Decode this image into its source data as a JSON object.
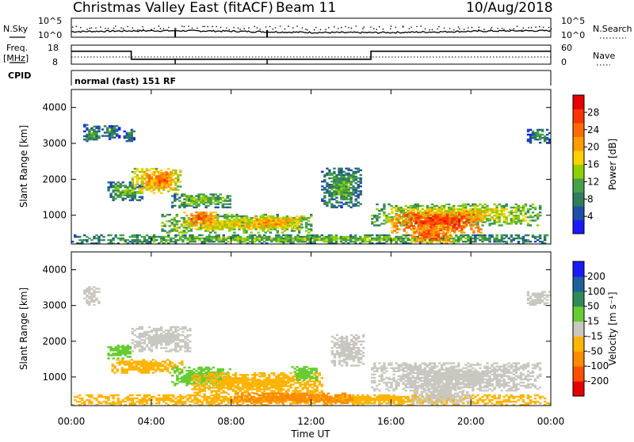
{
  "header": {
    "station": "Christmas Valley East (fitACF)",
    "beam": "Beam 11",
    "date": "10/Aug/2018"
  },
  "panels": {
    "nsky": {
      "label": "N.Sky",
      "left_ticks": [
        "10^5",
        "10^0"
      ],
      "right_ticks": [
        "10^5",
        "10^0"
      ],
      "right_label": "N.Search"
    },
    "freq": {
      "label_line1": "Freq.",
      "label_line2": "[MHz]",
      "left_ticks": [
        "18",
        "8"
      ],
      "right_ticks": [
        "60",
        "0"
      ],
      "right_label": "Nave"
    },
    "cpid": {
      "label": "CPID",
      "mode_text": "normal (fast) 151 RF"
    }
  },
  "axes": {
    "ylabel": "Slant Range [km]",
    "xlabel": "Time UT",
    "y_ticks": [
      "1000",
      "2000",
      "3000",
      "4000"
    ],
    "x_ticks": [
      "00:00",
      "04:00",
      "08:00",
      "12:00",
      "16:00",
      "20:00",
      "00:00"
    ]
  },
  "colorbars": {
    "power": {
      "label": "Power [dB]",
      "ticks": [
        "4",
        "8",
        "12",
        "16",
        "20",
        "24",
        "28"
      ],
      "colors": [
        "#1a1aff",
        "#1f4ea8",
        "#2e7d5b",
        "#48a048",
        "#8cd000",
        "#ffd000",
        "#ff9c00",
        "#ff6a00",
        "#ff3300",
        "#e60000"
      ]
    },
    "velocity": {
      "label": "Velocity [m s⁻¹]",
      "ticks": [
        "-200",
        "-100",
        "-50",
        "-15",
        "15",
        "50",
        "100",
        "200"
      ],
      "colors": [
        "#e60000",
        "#ff5000",
        "#ff8c00",
        "#ffb400",
        "#c8c8c0",
        "#66cc33",
        "#2e8b57",
        "#1f5fa0",
        "#1a1aff"
      ]
    }
  },
  "chart_data": {
    "type": "heatmap",
    "title": "Christmas Valley East (fitACF)",
    "xlabel": "Time UT",
    "ylabel": "Slant Range [km]",
    "xlim_hours": [
      0,
      24
    ],
    "ylim_km": [
      200,
      4500
    ],
    "grid": false,
    "series": [
      {
        "name": "Power [dB]",
        "colorbar_range": [
          0,
          30
        ],
        "regions": [
          {
            "t": [
              0.6,
              1.4
            ],
            "r": [
              3000,
              3500
            ],
            "level": 10
          },
          {
            "t": [
              1.5,
              2.4
            ],
            "r": [
              3100,
              3500
            ],
            "level": 8
          },
          {
            "t": [
              2.6,
              3.1
            ],
            "r": [
              3000,
              3400
            ],
            "level": 8
          },
          {
            "t": [
              1.8,
              3.5
            ],
            "r": [
              1400,
              1900
            ],
            "level": 11
          },
          {
            "t": [
              3.0,
              5.5
            ],
            "r": [
              1600,
              2300
            ],
            "level": 20
          },
          {
            "t": [
              4.0,
              5.0
            ],
            "r": [
              1800,
              2200
            ],
            "level": 24
          },
          {
            "t": [
              5.0,
              8.0
            ],
            "r": [
              1200,
              1600
            ],
            "level": 12
          },
          {
            "t": [
              4.5,
              12.0
            ],
            "r": [
              500,
              1000
            ],
            "level": 16
          },
          {
            "t": [
              5.6,
              7.2
            ],
            "r": [
              700,
              1100
            ],
            "level": 24
          },
          {
            "t": [
              8.5,
              11.5
            ],
            "r": [
              600,
              950
            ],
            "level": 20
          },
          {
            "t": [
              0.0,
              24.0
            ],
            "r": [
              200,
              450
            ],
            "level": 12
          },
          {
            "t": [
              12.5,
              14.5
            ],
            "r": [
              1200,
              2300
            ],
            "level": 10
          },
          {
            "t": [
              15.0,
              23.5
            ],
            "r": [
              700,
              1300
            ],
            "level": 16
          },
          {
            "t": [
              16.0,
              20.5
            ],
            "r": [
              500,
              1100
            ],
            "level": 26
          },
          {
            "t": [
              17.0,
              19.0
            ],
            "r": [
              200,
              700
            ],
            "level": 24
          },
          {
            "t": [
              22.8,
              23.9
            ],
            "r": [
              3000,
              3400
            ],
            "level": 8
          }
        ]
      },
      {
        "name": "Velocity [m s⁻¹]",
        "colorbar_range": [
          -250,
          250
        ],
        "regions": [
          {
            "t": [
              0.6,
              1.4
            ],
            "r": [
              3000,
              3500
            ],
            "value": 0
          },
          {
            "t": [
              3.0,
              6.0
            ],
            "r": [
              1700,
              2400
            ],
            "value": 0
          },
          {
            "t": [
              1.8,
              3.0
            ],
            "r": [
              1500,
              1900
            ],
            "value": 30
          },
          {
            "t": [
              2.0,
              5.5
            ],
            "r": [
              1100,
              1500
            ],
            "value": -30
          },
          {
            "t": [
              5.0,
              8.0
            ],
            "r": [
              750,
              1250
            ],
            "value": 30
          },
          {
            "t": [
              6.0,
              12.5
            ],
            "r": [
              500,
              1100
            ],
            "value": -20
          },
          {
            "t": [
              11.0,
              12.3
            ],
            "r": [
              900,
              1300
            ],
            "value": 40
          },
          {
            "t": [
              0.0,
              24.0
            ],
            "r": [
              200,
              500
            ],
            "value": -40
          },
          {
            "t": [
              8.0,
              14.0
            ],
            "r": [
              250,
              550
            ],
            "value": -60
          },
          {
            "t": [
              13.0,
              14.6
            ],
            "r": [
              1300,
              2200
            ],
            "value": 0
          },
          {
            "t": [
              15.0,
              23.5
            ],
            "r": [
              600,
              1400
            ],
            "value": 0
          },
          {
            "t": [
              17.0,
              20.0
            ],
            "r": [
              250,
              800
            ],
            "value": 0
          },
          {
            "t": [
              22.8,
              23.9
            ],
            "r": [
              3000,
              3400
            ],
            "value": 0
          }
        ]
      }
    ],
    "nsky_nave_nsearch": "shown as line traces",
    "frequency_mhz_segments": [
      {
        "t": [
          0.0,
          3.0
        ],
        "freq": 14.8
      },
      {
        "t": [
          3.0,
          15.0
        ],
        "freq": 10.6
      },
      {
        "t": [
          15.0,
          24.0
        ],
        "freq": 14.8
      }
    ]
  }
}
